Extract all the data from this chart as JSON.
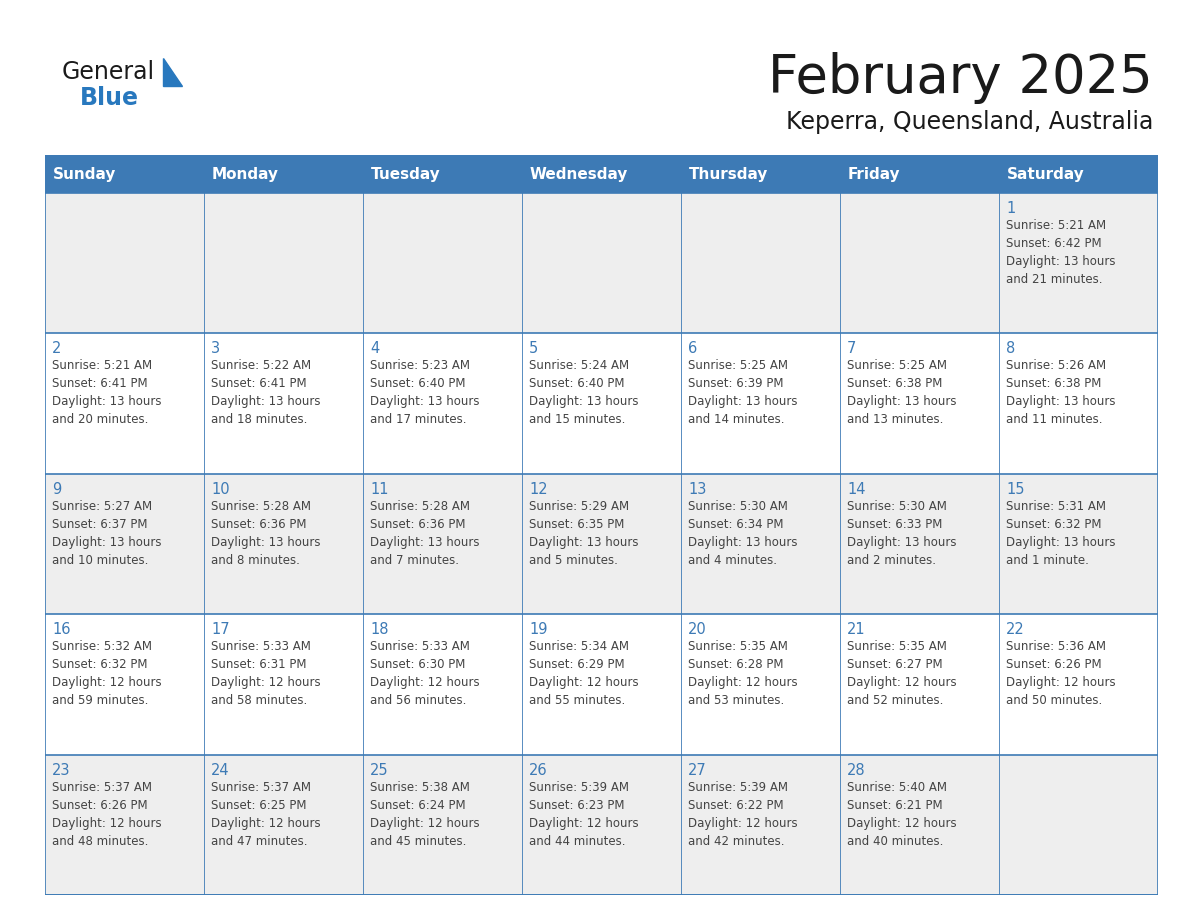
{
  "title": "February 2025",
  "subtitle": "Keperra, Queensland, Australia",
  "header_bg": "#3d7ab5",
  "header_text_color": "#ffffff",
  "cell_bg_odd": "#eeeeee",
  "cell_bg_even": "#ffffff",
  "border_color": "#3d7ab5",
  "days_of_week": [
    "Sunday",
    "Monday",
    "Tuesday",
    "Wednesday",
    "Thursday",
    "Friday",
    "Saturday"
  ],
  "weeks": [
    [
      {
        "day": null,
        "sunrise": null,
        "sunset": null,
        "daylight": null
      },
      {
        "day": null,
        "sunrise": null,
        "sunset": null,
        "daylight": null
      },
      {
        "day": null,
        "sunrise": null,
        "sunset": null,
        "daylight": null
      },
      {
        "day": null,
        "sunrise": null,
        "sunset": null,
        "daylight": null
      },
      {
        "day": null,
        "sunrise": null,
        "sunset": null,
        "daylight": null
      },
      {
        "day": null,
        "sunrise": null,
        "sunset": null,
        "daylight": null
      },
      {
        "day": 1,
        "sunrise": "5:21 AM",
        "sunset": "6:42 PM",
        "daylight": "13 hours\nand 21 minutes."
      }
    ],
    [
      {
        "day": 2,
        "sunrise": "5:21 AM",
        "sunset": "6:41 PM",
        "daylight": "13 hours\nand 20 minutes."
      },
      {
        "day": 3,
        "sunrise": "5:22 AM",
        "sunset": "6:41 PM",
        "daylight": "13 hours\nand 18 minutes."
      },
      {
        "day": 4,
        "sunrise": "5:23 AM",
        "sunset": "6:40 PM",
        "daylight": "13 hours\nand 17 minutes."
      },
      {
        "day": 5,
        "sunrise": "5:24 AM",
        "sunset": "6:40 PM",
        "daylight": "13 hours\nand 15 minutes."
      },
      {
        "day": 6,
        "sunrise": "5:25 AM",
        "sunset": "6:39 PM",
        "daylight": "13 hours\nand 14 minutes."
      },
      {
        "day": 7,
        "sunrise": "5:25 AM",
        "sunset": "6:38 PM",
        "daylight": "13 hours\nand 13 minutes."
      },
      {
        "day": 8,
        "sunrise": "5:26 AM",
        "sunset": "6:38 PM",
        "daylight": "13 hours\nand 11 minutes."
      }
    ],
    [
      {
        "day": 9,
        "sunrise": "5:27 AM",
        "sunset": "6:37 PM",
        "daylight": "13 hours\nand 10 minutes."
      },
      {
        "day": 10,
        "sunrise": "5:28 AM",
        "sunset": "6:36 PM",
        "daylight": "13 hours\nand 8 minutes."
      },
      {
        "day": 11,
        "sunrise": "5:28 AM",
        "sunset": "6:36 PM",
        "daylight": "13 hours\nand 7 minutes."
      },
      {
        "day": 12,
        "sunrise": "5:29 AM",
        "sunset": "6:35 PM",
        "daylight": "13 hours\nand 5 minutes."
      },
      {
        "day": 13,
        "sunrise": "5:30 AM",
        "sunset": "6:34 PM",
        "daylight": "13 hours\nand 4 minutes."
      },
      {
        "day": 14,
        "sunrise": "5:30 AM",
        "sunset": "6:33 PM",
        "daylight": "13 hours\nand 2 minutes."
      },
      {
        "day": 15,
        "sunrise": "5:31 AM",
        "sunset": "6:32 PM",
        "daylight": "13 hours\nand 1 minute."
      }
    ],
    [
      {
        "day": 16,
        "sunrise": "5:32 AM",
        "sunset": "6:32 PM",
        "daylight": "12 hours\nand 59 minutes."
      },
      {
        "day": 17,
        "sunrise": "5:33 AM",
        "sunset": "6:31 PM",
        "daylight": "12 hours\nand 58 minutes."
      },
      {
        "day": 18,
        "sunrise": "5:33 AM",
        "sunset": "6:30 PM",
        "daylight": "12 hours\nand 56 minutes."
      },
      {
        "day": 19,
        "sunrise": "5:34 AM",
        "sunset": "6:29 PM",
        "daylight": "12 hours\nand 55 minutes."
      },
      {
        "day": 20,
        "sunrise": "5:35 AM",
        "sunset": "6:28 PM",
        "daylight": "12 hours\nand 53 minutes."
      },
      {
        "day": 21,
        "sunrise": "5:35 AM",
        "sunset": "6:27 PM",
        "daylight": "12 hours\nand 52 minutes."
      },
      {
        "day": 22,
        "sunrise": "5:36 AM",
        "sunset": "6:26 PM",
        "daylight": "12 hours\nand 50 minutes."
      }
    ],
    [
      {
        "day": 23,
        "sunrise": "5:37 AM",
        "sunset": "6:26 PM",
        "daylight": "12 hours\nand 48 minutes."
      },
      {
        "day": 24,
        "sunrise": "5:37 AM",
        "sunset": "6:25 PM",
        "daylight": "12 hours\nand 47 minutes."
      },
      {
        "day": 25,
        "sunrise": "5:38 AM",
        "sunset": "6:24 PM",
        "daylight": "12 hours\nand 45 minutes."
      },
      {
        "day": 26,
        "sunrise": "5:39 AM",
        "sunset": "6:23 PM",
        "daylight": "12 hours\nand 44 minutes."
      },
      {
        "day": 27,
        "sunrise": "5:39 AM",
        "sunset": "6:22 PM",
        "daylight": "12 hours\nand 42 minutes."
      },
      {
        "day": 28,
        "sunrise": "5:40 AM",
        "sunset": "6:21 PM",
        "daylight": "12 hours\nand 40 minutes."
      },
      {
        "day": null,
        "sunrise": null,
        "sunset": null,
        "daylight": null
      }
    ]
  ],
  "logo_color_general": "#1a1a1a",
  "logo_color_blue": "#2878be",
  "logo_triangle_color": "#2878be",
  "day_number_color": "#3d7ab5",
  "info_text_color": "#444444",
  "title_color": "#1a1a1a",
  "subtitle_color": "#1a1a1a",
  "fig_width": 11.88,
  "fig_height": 9.18,
  "dpi": 100
}
